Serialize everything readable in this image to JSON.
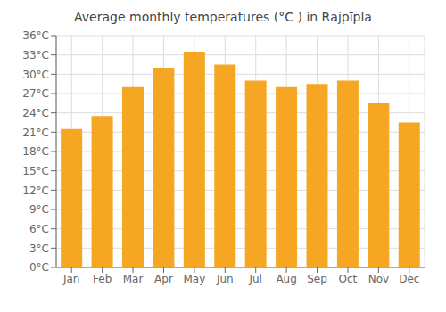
{
  "chart_data": {
    "type": "bar",
    "title": "Average monthly temperatures (°C ) in Rājpīpla",
    "categories": [
      "Jan",
      "Feb",
      "Mar",
      "Apr",
      "May",
      "Jun",
      "Jul",
      "Aug",
      "Sep",
      "Oct",
      "Nov",
      "Dec"
    ],
    "values": [
      21.5,
      23.5,
      28.0,
      31.0,
      33.5,
      31.5,
      29.0,
      28.0,
      28.5,
      29.0,
      25.5,
      22.5
    ],
    "color": "#F5A623",
    "ylim": [
      0,
      36
    ],
    "yticks": [
      {
        "value": 0,
        "label": "0°C"
      },
      {
        "value": 3,
        "label": "3°C"
      },
      {
        "value": 6,
        "label": "6°C"
      },
      {
        "value": 9,
        "label": "9°C"
      },
      {
        "value": 12,
        "label": "12°C"
      },
      {
        "value": 15,
        "label": "15°C"
      },
      {
        "value": 18,
        "label": "18°C"
      },
      {
        "value": 21,
        "label": "21°C"
      },
      {
        "value": 24,
        "label": "24°C"
      },
      {
        "value": 27,
        "label": "27°C"
      },
      {
        "value": 30,
        "label": "30°C"
      },
      {
        "value": 33,
        "label": "33°C"
      },
      {
        "value": 36,
        "label": "36°C"
      }
    ],
    "grid": true
  }
}
